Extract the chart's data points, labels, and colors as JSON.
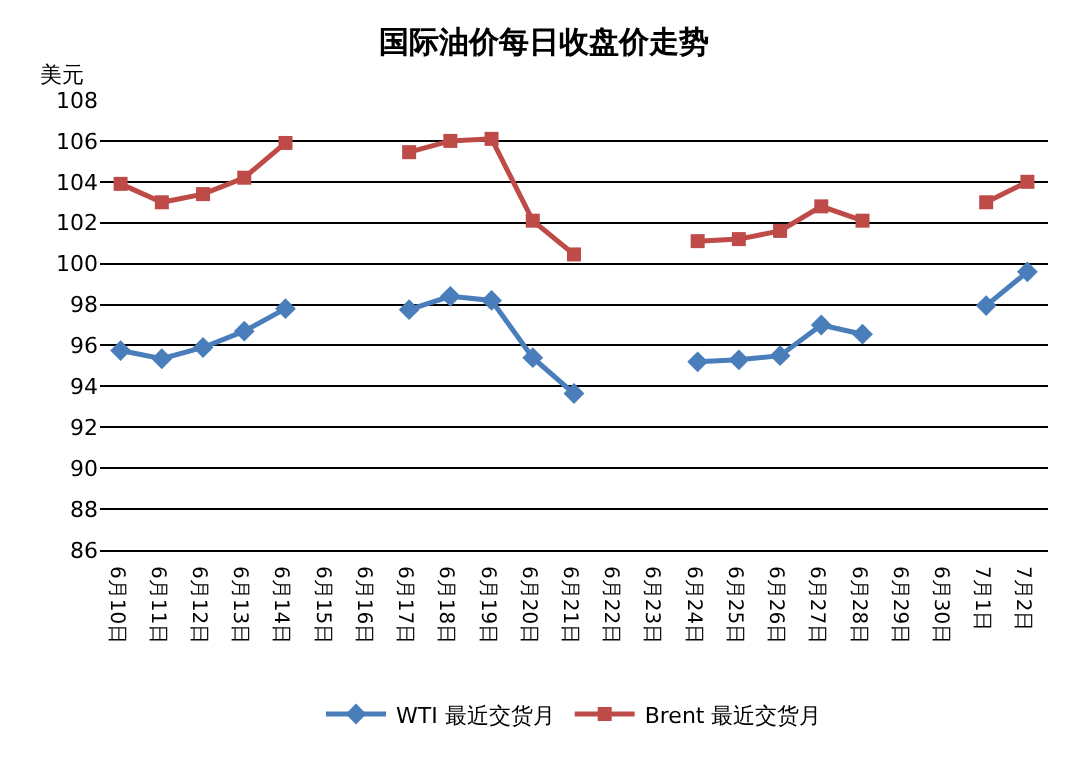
{
  "chart_data": {
    "type": "line",
    "title": "国际油价每日收盘价走势",
    "ylabel": "美元",
    "categories": [
      "6月10日",
      "6月11日",
      "6月12日",
      "6月13日",
      "6月14日",
      "6月15日",
      "6月16日",
      "6月17日",
      "6月18日",
      "6月19日",
      "6月20日",
      "6月21日",
      "6月22日",
      "6月23日",
      "6月24日",
      "6月25日",
      "6月26日",
      "6月27日",
      "6月28日",
      "6月29日",
      "6月30日",
      "7月1日",
      "7月2日"
    ],
    "series": [
      {
        "name": "WTI 最近交货月",
        "color": "#4a7ebb",
        "marker": "diamond",
        "values": [
          95.75,
          95.35,
          95.9,
          96.7,
          97.8,
          null,
          null,
          97.75,
          98.4,
          98.2,
          95.4,
          93.65,
          null,
          null,
          95.2,
          95.3,
          95.5,
          97.0,
          96.55,
          null,
          null,
          97.95,
          99.6
        ]
      },
      {
        "name": "Brent 最近交货月",
        "color": "#be4b48",
        "marker": "square",
        "values": [
          103.9,
          103.0,
          103.4,
          104.2,
          105.9,
          null,
          null,
          105.45,
          106.0,
          106.1,
          102.1,
          100.45,
          null,
          null,
          101.1,
          101.2,
          101.6,
          102.8,
          102.1,
          null,
          null,
          103.0,
          104.0
        ]
      }
    ],
    "ylim": [
      86,
      108
    ],
    "yticks": [
      86,
      88,
      90,
      92,
      94,
      96,
      98,
      100,
      102,
      104,
      106,
      108
    ],
    "grid": "y",
    "legend": "bottom",
    "line_style": "solid"
  }
}
